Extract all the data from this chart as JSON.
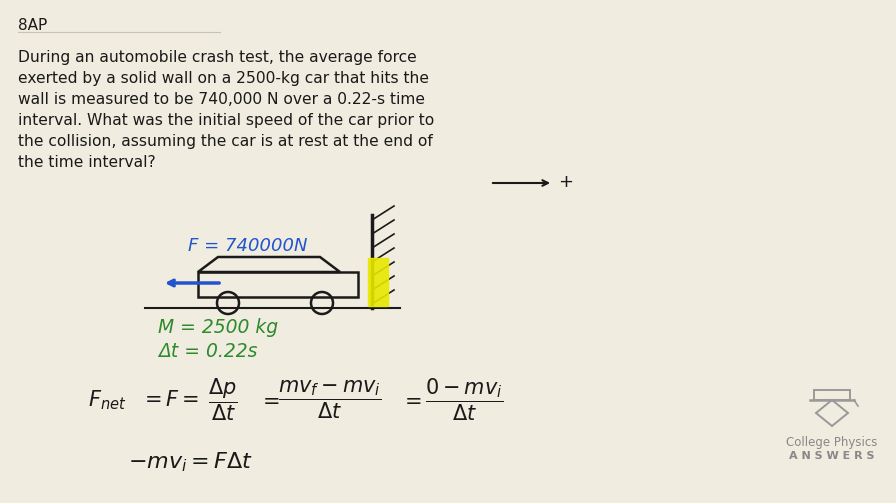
{
  "background_color": "#f0ece0",
  "title_label": "8AP",
  "problem_text_lines": [
    "During an automobile crash test, the average force",
    "exerted by a solid wall on a 2500-kg car that hits the",
    "wall is measured to be 740,000 N over a 0.22-s time",
    "interval. What was the initial speed of the car prior to",
    "the collision, assuming the car is at rest at the end of",
    "the time interval?"
  ],
  "given_m": "M = 2500 kg",
  "given_dt": "Δt = 0.22s",
  "given_F": "F = 740000N",
  "logo_text1": "College Physics",
  "logo_text2": "A N S W E R S",
  "text_color": "#1a1a1a",
  "green_color": "#2d8a2d",
  "blue_color": "#2255cc",
  "gray_color": "#888888"
}
